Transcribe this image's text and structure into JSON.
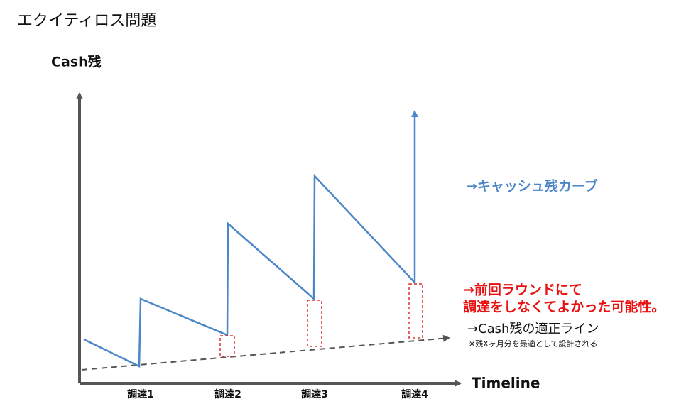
{
  "title": "エクイティロス問題",
  "axes": {
    "y_label": "Cash残",
    "x_label": "Timeline"
  },
  "rounds": [
    "調達1",
    "調達2",
    "調達3",
    "調達4"
  ],
  "annotations": {
    "curve": "→キャッシュ残カーブ",
    "warning": [
      "→前回ラウンドにて",
      "調達をしなくてよかった可能性。"
    ],
    "line": "→Cash残の適正ライン",
    "line_note": "※残Xヶ月分を最適として設計される"
  }
}
